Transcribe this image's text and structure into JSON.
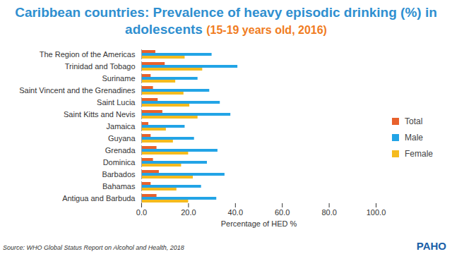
{
  "chart_data": {
    "type": "bar",
    "orientation": "horizontal",
    "title": "Caribbean countries: Prevalence of heavy episodic drinking (%) in adolescents",
    "subtitle": "(15-19 years old, 2016)",
    "x_label": "Percentage of HED %",
    "source": "Source: WHO Global Status Report on Alcohol and Health, 2018",
    "logo": "PAHO",
    "categories": [
      "The Region of the Americas",
      "Trinidad and Tobago",
      "Suriname",
      "Saint Vincent and the Grenadines",
      "Saint Lucia",
      "Saint Kitts and Nevis",
      "Jamaica",
      "Guyana",
      "Grenada",
      "Dominica",
      "Barbados",
      "Bahamas",
      "Antigua and Barbuda"
    ],
    "series": [
      {
        "name": "Total",
        "color": "#e8612c",
        "values": [
          6,
          10,
          4,
          5,
          7,
          9,
          3,
          4,
          6.5,
          5,
          7.5,
          4,
          6.5
        ]
      },
      {
        "name": "Male",
        "color": "#22a4e6",
        "values": [
          30,
          41,
          24,
          29,
          33.5,
          38,
          18.5,
          22.5,
          32.5,
          28,
          35.5,
          25.5,
          32
        ]
      },
      {
        "name": "Female",
        "color": "#f5bb1e",
        "values": [
          18.5,
          26,
          14.5,
          18,
          20.5,
          24,
          10.5,
          13.5,
          20,
          17,
          22,
          15,
          20
        ]
      }
    ],
    "xlim": [
      0,
      100
    ],
    "xticks": [
      {
        "value": 0,
        "label": "0.0"
      },
      {
        "value": 20,
        "label": "20.0"
      },
      {
        "value": 40,
        "label": "40.0"
      },
      {
        "value": 60,
        "label": "60.0"
      },
      {
        "value": 80,
        "label": "80.0"
      },
      {
        "value": 100,
        "label": "100.0"
      }
    ],
    "grid": false,
    "legend": "right"
  }
}
